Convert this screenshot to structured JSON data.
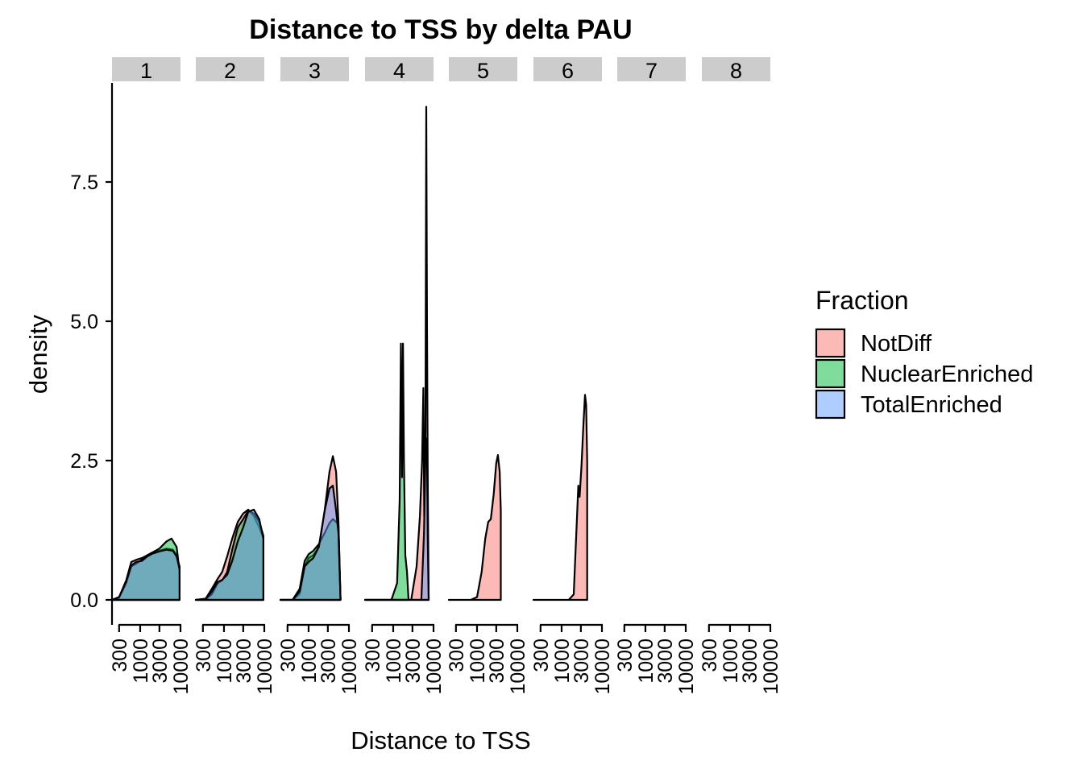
{
  "chart_data": {
    "type": "area",
    "title": "Distance to TSS by delta PAU",
    "xlabel": "Distance to TSS",
    "ylabel": "density",
    "x_scale": "log10",
    "xlim": [
      200,
      10000
    ],
    "ylim": [
      0,
      8.9
    ],
    "y_ticks": [
      {
        "value": 0,
        "label": "0.0"
      },
      {
        "value": 2.5,
        "label": "2.5"
      },
      {
        "value": 5,
        "label": "5.0"
      },
      {
        "value": 7.5,
        "label": "7.5"
      }
    ],
    "x_ticks": [
      {
        "value": 300,
        "label": "300"
      },
      {
        "value": 1000,
        "label": "1000"
      },
      {
        "value": 3000,
        "label": "3000"
      },
      {
        "value": 10000,
        "label": "10000"
      }
    ],
    "facets": [
      "1",
      "2",
      "3",
      "4",
      "5",
      "6",
      "7",
      "8"
    ],
    "legend": {
      "title": "Fraction",
      "position": "right",
      "items": [
        {
          "label": "NotDiff",
          "color": "#F8766D"
        },
        {
          "label": "NuclearEnriched",
          "color": "#00BA38"
        },
        {
          "label": "TotalEnriched",
          "color": "#619CFF"
        }
      ]
    },
    "series_colors": {
      "NotDiff": "#F8766D",
      "NuclearEnriched": "#00BA38",
      "TotalEnriched": "#619CFF"
    },
    "panels": [
      {
        "facet": "1",
        "series": [
          {
            "name": "NotDiff",
            "points": [
              [
                200,
                0
              ],
              [
                300,
                0.05
              ],
              [
                450,
                0.35
              ],
              [
                600,
                0.68
              ],
              [
                800,
                0.72
              ],
              [
                1100,
                0.75
              ],
              [
                1500,
                0.8
              ],
              [
                2000,
                0.85
              ],
              [
                3000,
                0.88
              ],
              [
                4500,
                0.92
              ],
              [
                6500,
                0.9
              ],
              [
                8000,
                0.8
              ],
              [
                9500,
                0.6
              ]
            ]
          },
          {
            "name": "NuclearEnriched",
            "points": [
              [
                200,
                0
              ],
              [
                300,
                0.04
              ],
              [
                450,
                0.3
              ],
              [
                600,
                0.6
              ],
              [
                800,
                0.65
              ],
              [
                1100,
                0.72
              ],
              [
                1500,
                0.8
              ],
              [
                2000,
                0.85
              ],
              [
                3000,
                0.92
              ],
              [
                4500,
                1.05
              ],
              [
                6000,
                1.1
              ],
              [
                8000,
                0.95
              ],
              [
                9500,
                0.5
              ]
            ]
          },
          {
            "name": "TotalEnriched",
            "points": [
              [
                200,
                0
              ],
              [
                300,
                0.05
              ],
              [
                450,
                0.33
              ],
              [
                600,
                0.62
              ],
              [
                800,
                0.68
              ],
              [
                1100,
                0.7
              ],
              [
                1500,
                0.78
              ],
              [
                2000,
                0.83
              ],
              [
                3000,
                0.87
              ],
              [
                4500,
                0.9
              ],
              [
                6500,
                0.88
              ],
              [
                8000,
                0.78
              ],
              [
                9500,
                0.55
              ]
            ]
          }
        ]
      },
      {
        "facet": "2",
        "series": [
          {
            "name": "NotDiff",
            "points": [
              [
                200,
                0
              ],
              [
                350,
                0.02
              ],
              [
                500,
                0.2
              ],
              [
                700,
                0.38
              ],
              [
                900,
                0.5
              ],
              [
                1200,
                0.78
              ],
              [
                1600,
                1.1
              ],
              [
                2200,
                1.4
              ],
              [
                3000,
                1.55
              ],
              [
                4000,
                1.62
              ],
              [
                5500,
                1.5
              ],
              [
                7500,
                1.3
              ],
              [
                9500,
                1.1
              ]
            ]
          },
          {
            "name": "NuclearEnriched",
            "points": [
              [
                200,
                0
              ],
              [
                350,
                0.01
              ],
              [
                500,
                0.1
              ],
              [
                700,
                0.3
              ],
              [
                900,
                0.35
              ],
              [
                1200,
                0.5
              ],
              [
                1600,
                0.9
              ],
              [
                2200,
                1.3
              ],
              [
                3000,
                1.45
              ],
              [
                4000,
                1.6
              ],
              [
                5500,
                1.55
              ],
              [
                7500,
                1.4
              ],
              [
                9500,
                1.15
              ]
            ]
          },
          {
            "name": "TotalEnriched",
            "points": [
              [
                200,
                0
              ],
              [
                350,
                0.02
              ],
              [
                500,
                0.15
              ],
              [
                700,
                0.32
              ],
              [
                900,
                0.36
              ],
              [
                1200,
                0.45
              ],
              [
                1600,
                0.7
              ],
              [
                2200,
                1.05
              ],
              [
                3000,
                1.3
              ],
              [
                4000,
                1.58
              ],
              [
                5500,
                1.62
              ],
              [
                7500,
                1.45
              ],
              [
                9500,
                1.1
              ]
            ]
          }
        ]
      },
      {
        "facet": "3",
        "series": [
          {
            "name": "NotDiff",
            "points": [
              [
                200,
                0
              ],
              [
                400,
                0
              ],
              [
                600,
                0.1
              ],
              [
                800,
                0.6
              ],
              [
                1000,
                0.75
              ],
              [
                1300,
                0.8
              ],
              [
                1800,
                0.95
              ],
              [
                2500,
                1.6
              ],
              [
                3300,
                2.3
              ],
              [
                4000,
                2.58
              ],
              [
                4800,
                2.3
              ],
              [
                5500,
                1.4
              ],
              [
                6200,
                0
              ]
            ]
          },
          {
            "name": "NuclearEnriched",
            "points": [
              [
                200,
                0
              ],
              [
                400,
                0
              ],
              [
                600,
                0.2
              ],
              [
                800,
                0.7
              ],
              [
                1000,
                0.82
              ],
              [
                1300,
                0.88
              ],
              [
                1800,
                1.0
              ],
              [
                2500,
                1.2
              ],
              [
                3300,
                1.38
              ],
              [
                4000,
                1.45
              ],
              [
                4800,
                1.4
              ],
              [
                5500,
                1.35
              ],
              [
                6200,
                0
              ]
            ]
          },
          {
            "name": "TotalEnriched",
            "points": [
              [
                200,
                0
              ],
              [
                400,
                0
              ],
              [
                600,
                0.15
              ],
              [
                800,
                0.6
              ],
              [
                1000,
                0.68
              ],
              [
                1300,
                0.75
              ],
              [
                1800,
                0.95
              ],
              [
                2500,
                1.6
              ],
              [
                3300,
                2.0
              ],
              [
                4000,
                2.05
              ],
              [
                4800,
                1.6
              ],
              [
                5500,
                1.2
              ],
              [
                6200,
                0
              ]
            ]
          }
        ]
      },
      {
        "facet": "4",
        "series": [
          {
            "name": "NotDiff",
            "points": [
              [
                200,
                0
              ],
              [
                1500,
                0
              ],
              [
                2800,
                0
              ],
              [
                3800,
                0.6
              ],
              [
                4600,
                1.5
              ],
              [
                5200,
                2.5
              ],
              [
                5600,
                3.8
              ],
              [
                5900,
                1.5
              ],
              [
                6300,
                3.0
              ],
              [
                6600,
                8.85
              ],
              [
                6900,
                5.0
              ],
              [
                7200,
                2.0
              ],
              [
                7600,
                0
              ]
            ]
          },
          {
            "name": "NuclearEnriched",
            "points": [
              [
                200,
                0
              ],
              [
                900,
                0
              ],
              [
                1250,
                0.3
              ],
              [
                1450,
                1.8
              ],
              [
                1550,
                4.6
              ],
              [
                1650,
                2.2
              ],
              [
                1750,
                4.6
              ],
              [
                1850,
                2.5
              ],
              [
                2000,
                0.8
              ],
              [
                2200,
                0.5
              ],
              [
                2400,
                0
              ]
            ]
          },
          {
            "name": "TotalEnriched",
            "points": [
              [
                200,
                0
              ],
              [
                3000,
                0
              ],
              [
                5000,
                0
              ],
              [
                5800,
                1.2
              ],
              [
                6300,
                2.6
              ],
              [
                6600,
                2.9
              ],
              [
                6900,
                2.7
              ],
              [
                7200,
                1.0
              ],
              [
                7600,
                0
              ]
            ]
          }
        ]
      },
      {
        "facet": "5",
        "series": [
          {
            "name": "NotDiff",
            "points": [
              [
                200,
                0
              ],
              [
                700,
                0
              ],
              [
                1000,
                0.05
              ],
              [
                1300,
                0.5
              ],
              [
                1600,
                1.1
              ],
              [
                1900,
                1.4
              ],
              [
                2200,
                1.45
              ],
              [
                2600,
                1.9
              ],
              [
                3000,
                2.45
              ],
              [
                3300,
                2.6
              ],
              [
                3650,
                2.3
              ],
              [
                3900,
                1.6
              ]
            ]
          }
        ]
      },
      {
        "facet": "6",
        "series": [
          {
            "name": "NotDiff",
            "points": [
              [
                200,
                0
              ],
              [
                1500,
                0
              ],
              [
                2000,
                0.1
              ],
              [
                2350,
                1.3
              ],
              [
                2600,
                2.05
              ],
              [
                2800,
                1.85
              ],
              [
                3100,
                2.4
              ],
              [
                3500,
                3.2
              ],
              [
                3800,
                3.68
              ],
              [
                4050,
                3.5
              ],
              [
                4300,
                2.5
              ]
            ]
          }
        ]
      },
      {
        "facet": "7",
        "series": []
      },
      {
        "facet": "8",
        "series": []
      }
    ]
  }
}
